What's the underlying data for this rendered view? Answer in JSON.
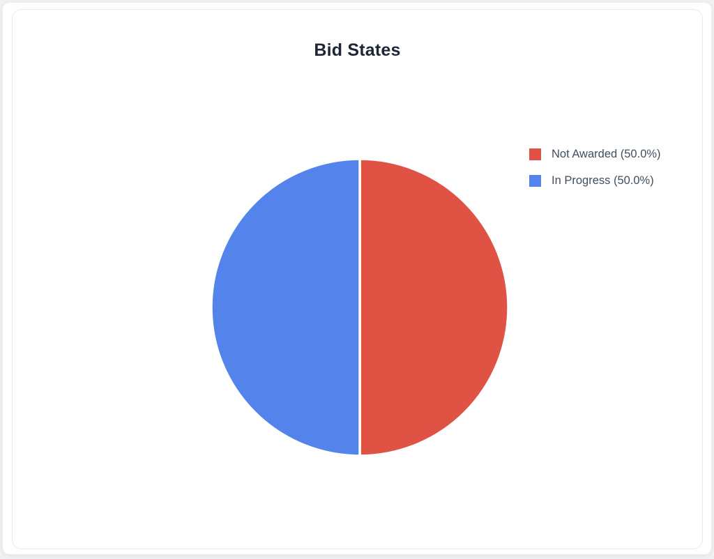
{
  "chart_data": {
    "type": "pie",
    "title": "Bid States",
    "slices": [
      {
        "label": "Not Awarded",
        "value": 50.0,
        "percent_label": "50.0%",
        "color": "#e05243",
        "legend_label": "Not Awarded (50.0%)"
      },
      {
        "label": "In Progress",
        "value": 50.0,
        "percent_label": "50.0%",
        "color": "#5484eb",
        "legend_label": "In Progress (50.0%)"
      }
    ],
    "start_angle_deg": 0,
    "direction": "clockwise",
    "legend_position": "right",
    "divider_color": "#ffffff",
    "colors": {
      "title_text": "#1d2636",
      "legend_text": "#414e5e",
      "card_border": "#e9eaef",
      "card_background": "#ffffff",
      "page_background": "#f0f1f3"
    }
  }
}
